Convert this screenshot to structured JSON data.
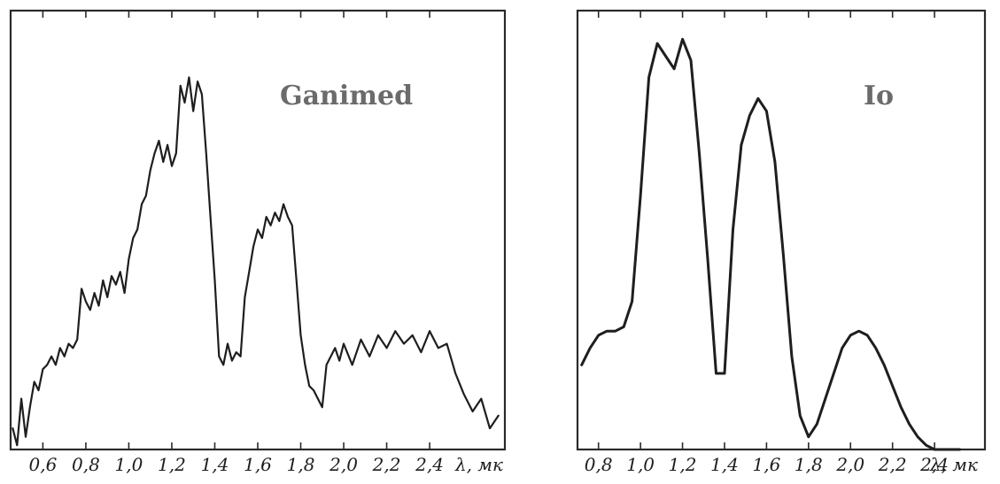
{
  "chart_data": [
    {
      "type": "line",
      "title": "Ganimed",
      "xlabel": "λ, мк",
      "ylabel": "",
      "xlim": [
        0.45,
        2.75
      ],
      "ylim": [
        0,
        1
      ],
      "grid": false,
      "x_ticks": [
        {
          "value": 0.6,
          "label": "0,6"
        },
        {
          "value": 0.8,
          "label": "0,8"
        },
        {
          "value": 1.0,
          "label": "1,0"
        },
        {
          "value": 1.2,
          "label": "1,2"
        },
        {
          "value": 1.4,
          "label": "1,4"
        },
        {
          "value": 1.6,
          "label": "1,6"
        },
        {
          "value": 1.8,
          "label": "1,8"
        },
        {
          "value": 2.0,
          "label": "2,0"
        },
        {
          "value": 2.2,
          "label": "2,2"
        },
        {
          "value": 2.4,
          "label": "2,4"
        }
      ],
      "series": [
        {
          "x": [
            0.46,
            0.48,
            0.5,
            0.52,
            0.54,
            0.56,
            0.58,
            0.6,
            0.62,
            0.64,
            0.66,
            0.68,
            0.7,
            0.72,
            0.74,
            0.76,
            0.78,
            0.8,
            0.82,
            0.84,
            0.86,
            0.88,
            0.9,
            0.92,
            0.94,
            0.96,
            0.98,
            1.0,
            1.02,
            1.04,
            1.06,
            1.08,
            1.1,
            1.12,
            1.14,
            1.16,
            1.18,
            1.2,
            1.22,
            1.24,
            1.26,
            1.28,
            1.3,
            1.32,
            1.34,
            1.36,
            1.38,
            1.4,
            1.42,
            1.44,
            1.46,
            1.48,
            1.5,
            1.52,
            1.54,
            1.56,
            1.58,
            1.6,
            1.62,
            1.64,
            1.66,
            1.68,
            1.7,
            1.72,
            1.74,
            1.76,
            1.78,
            1.8,
            1.82,
            1.84,
            1.86,
            1.88,
            1.9,
            1.92,
            1.94,
            1.96,
            1.98,
            2.0,
            2.04,
            2.08,
            2.12,
            2.16,
            2.2,
            2.24,
            2.28,
            2.32,
            2.36,
            2.4,
            2.44,
            2.48,
            2.52,
            2.56,
            2.6,
            2.64,
            2.68,
            2.72
          ],
          "y": [
            0.05,
            0.01,
            0.12,
            0.03,
            0.1,
            0.16,
            0.14,
            0.19,
            0.2,
            0.22,
            0.2,
            0.24,
            0.22,
            0.25,
            0.24,
            0.26,
            0.38,
            0.35,
            0.33,
            0.37,
            0.34,
            0.4,
            0.36,
            0.41,
            0.39,
            0.42,
            0.37,
            0.45,
            0.5,
            0.52,
            0.58,
            0.6,
            0.66,
            0.7,
            0.73,
            0.68,
            0.72,
            0.67,
            0.7,
            0.86,
            0.82,
            0.88,
            0.8,
            0.87,
            0.84,
            0.7,
            0.55,
            0.4,
            0.22,
            0.2,
            0.25,
            0.21,
            0.23,
            0.22,
            0.36,
            0.42,
            0.48,
            0.52,
            0.5,
            0.55,
            0.53,
            0.56,
            0.54,
            0.58,
            0.55,
            0.53,
            0.4,
            0.27,
            0.2,
            0.15,
            0.14,
            0.12,
            0.1,
            0.2,
            0.22,
            0.24,
            0.21,
            0.25,
            0.2,
            0.26,
            0.22,
            0.27,
            0.24,
            0.28,
            0.25,
            0.27,
            0.23,
            0.28,
            0.24,
            0.25,
            0.18,
            0.13,
            0.09,
            0.12,
            0.05,
            0.08
          ]
        }
      ]
    },
    {
      "type": "line",
      "title": "Io",
      "xlabel": "λ, мк",
      "ylabel": "",
      "xlim": [
        0.7,
        2.64
      ],
      "ylim": [
        0,
        1
      ],
      "grid": false,
      "x_ticks": [
        {
          "value": 0.8,
          "label": "0,8"
        },
        {
          "value": 1.0,
          "label": "1,0"
        },
        {
          "value": 1.2,
          "label": "1,2"
        },
        {
          "value": 1.4,
          "label": "1,4"
        },
        {
          "value": 1.6,
          "label": "1,6"
        },
        {
          "value": 1.8,
          "label": "1,8"
        },
        {
          "value": 2.0,
          "label": "2,0"
        },
        {
          "value": 2.2,
          "label": "2,2"
        },
        {
          "value": 2.4,
          "label": "2,4"
        }
      ],
      "series": [
        {
          "x": [
            0.72,
            0.76,
            0.8,
            0.84,
            0.88,
            0.92,
            0.96,
            1.0,
            1.04,
            1.08,
            1.12,
            1.16,
            1.2,
            1.24,
            1.28,
            1.32,
            1.36,
            1.4,
            1.44,
            1.48,
            1.52,
            1.56,
            1.6,
            1.64,
            1.68,
            1.72,
            1.76,
            1.8,
            1.84,
            1.88,
            1.92,
            1.96,
            2.0,
            2.04,
            2.08,
            2.12,
            2.16,
            2.2,
            2.24,
            2.28,
            2.32,
            2.36,
            2.4,
            2.44,
            2.48,
            2.52
          ],
          "y": [
            0.2,
            0.24,
            0.27,
            0.28,
            0.28,
            0.29,
            0.35,
            0.6,
            0.88,
            0.96,
            0.93,
            0.9,
            0.97,
            0.92,
            0.7,
            0.45,
            0.18,
            0.18,
            0.52,
            0.72,
            0.79,
            0.83,
            0.8,
            0.68,
            0.46,
            0.22,
            0.08,
            0.03,
            0.06,
            0.12,
            0.18,
            0.24,
            0.27,
            0.28,
            0.27,
            0.24,
            0.2,
            0.15,
            0.1,
            0.06,
            0.03,
            0.01,
            0.0,
            0.0,
            0.0,
            0.0
          ]
        }
      ]
    }
  ]
}
